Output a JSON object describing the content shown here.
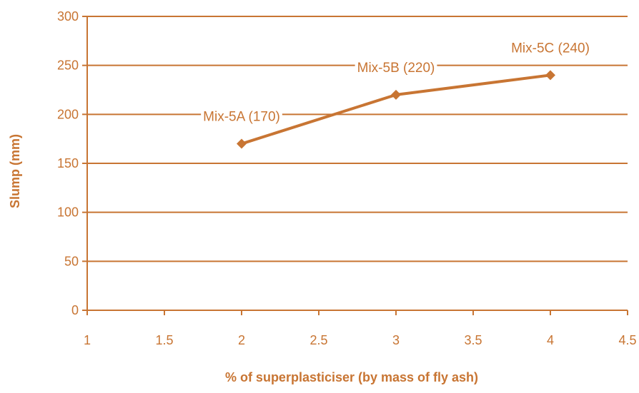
{
  "colors": {
    "accent": "#C87533",
    "grid": "#C87533",
    "background": "#FFFFFF"
  },
  "chart_data": {
    "type": "line",
    "title": "",
    "xlabel": "% of superplasticiser (by mass of fly ash)",
    "ylabel": "Slump (mm)",
    "xlim": [
      1,
      4.5
    ],
    "ylim": [
      0,
      300
    ],
    "xticks": [
      "1",
      "1.5",
      "2",
      "2.5",
      "3",
      "3.5",
      "4",
      "4.5"
    ],
    "yticks": [
      "0",
      "50",
      "100",
      "150",
      "200",
      "250",
      "300"
    ],
    "grid": "horizontal",
    "legend": "none",
    "series": [
      {
        "x": [
          2,
          3,
          4
        ],
        "y": [
          170,
          220,
          240
        ],
        "marker": "diamond",
        "labels": [
          "Mix-5A (170)",
          "Mix-5B (220)",
          "Mix-5C (240)"
        ]
      }
    ]
  }
}
